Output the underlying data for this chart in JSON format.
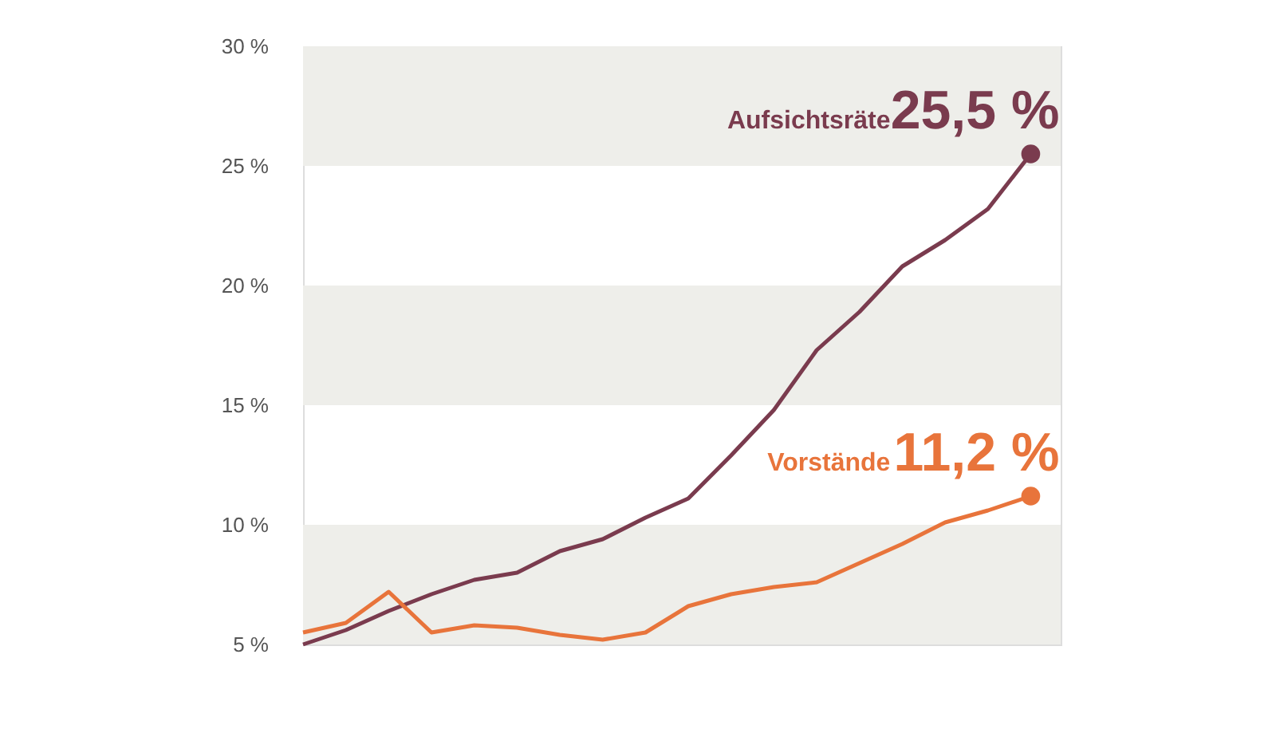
{
  "chart_data": {
    "type": "line",
    "categories": [
      null,
      null,
      null,
      null,
      null,
      null,
      null,
      null,
      null,
      null,
      null,
      null,
      null,
      null,
      null,
      null,
      null,
      null
    ],
    "series": [
      {
        "name": "Aufsichtsräte",
        "color": "#7a3b4e",
        "values": [
          5.0,
          5.6,
          6.4,
          7.1,
          7.7,
          8.0,
          8.9,
          9.4,
          10.3,
          11.1,
          12.9,
          14.8,
          17.3,
          18.9,
          20.8,
          21.9,
          23.2,
          25.5
        ],
        "value_labels": [
          null,
          null,
          null,
          null,
          null,
          null,
          null,
          null,
          null,
          null,
          null,
          null,
          null,
          null,
          null,
          null,
          null,
          "25,5 %"
        ]
      },
      {
        "name": "Vorstände",
        "color": "#e8743b",
        "values": [
          5.5,
          5.9,
          7.2,
          5.5,
          5.8,
          5.7,
          5.4,
          5.2,
          5.5,
          6.6,
          7.1,
          7.4,
          7.6,
          8.4,
          9.2,
          10.1,
          10.6,
          11.2
        ],
        "value_labels": [
          null,
          null,
          null,
          null,
          null,
          null,
          null,
          null,
          null,
          null,
          null,
          null,
          null,
          null,
          null,
          null,
          null,
          "11,2 %"
        ]
      }
    ],
    "ylim": [
      5,
      30
    ],
    "yticks": [
      {
        "value": 5,
        "label": "5 %"
      },
      {
        "value": 10,
        "label": "10 %"
      },
      {
        "value": 15,
        "label": "15 %"
      },
      {
        "value": 20,
        "label": "20 %"
      },
      {
        "value": 25,
        "label": "25 %"
      },
      {
        "value": 30,
        "label": "30 %"
      }
    ],
    "bands": [
      {
        "axis": "y",
        "from": 5,
        "to": 10,
        "color": "#eeeeea"
      },
      {
        "axis": "y",
        "from": 15,
        "to": 20,
        "color": "#eeeeea"
      },
      {
        "axis": "y",
        "from": 25,
        "to": 30,
        "color": "#eeeeea"
      }
    ],
    "grid": false,
    "legend": false,
    "tick_labels": "y",
    "line_style": "solid"
  }
}
